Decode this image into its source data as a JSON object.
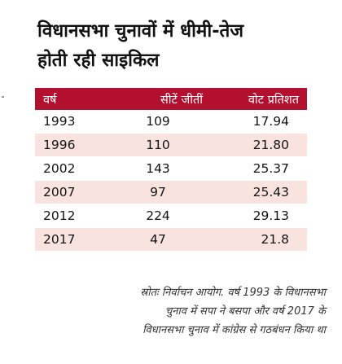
{
  "title": {
    "line1": "विधानसभा चुनावों में धीमी-तेज",
    "line2": "होती रही साइकिल"
  },
  "table": {
    "headers": [
      "वर्ष",
      "सीटें जीतीं",
      "वोट प्रतिशत"
    ],
    "rows": [
      [
        "1993",
        "109",
        "17.94"
      ],
      [
        "1996",
        "110",
        "21.80"
      ],
      [
        "2002",
        "143",
        "25.37"
      ],
      [
        "2007",
        "97",
        "25.43"
      ],
      [
        "2012",
        "224",
        "29.13"
      ],
      [
        "2017",
        "47",
        "21.8"
      ]
    ]
  },
  "source": {
    "line1": "स्रोतः निर्वाचन आयोग. वर्ष 1993 के विधानसभा",
    "line2": "चुनाव में सपा ने बसपा और वर्ष 2017 के",
    "line3": "विधानसभा चुनाव में कांग्रेस से गठबंधन किया था"
  },
  "colors": {
    "header_bg": "#b30f2f",
    "stripe_bg": "#f8e3df"
  }
}
